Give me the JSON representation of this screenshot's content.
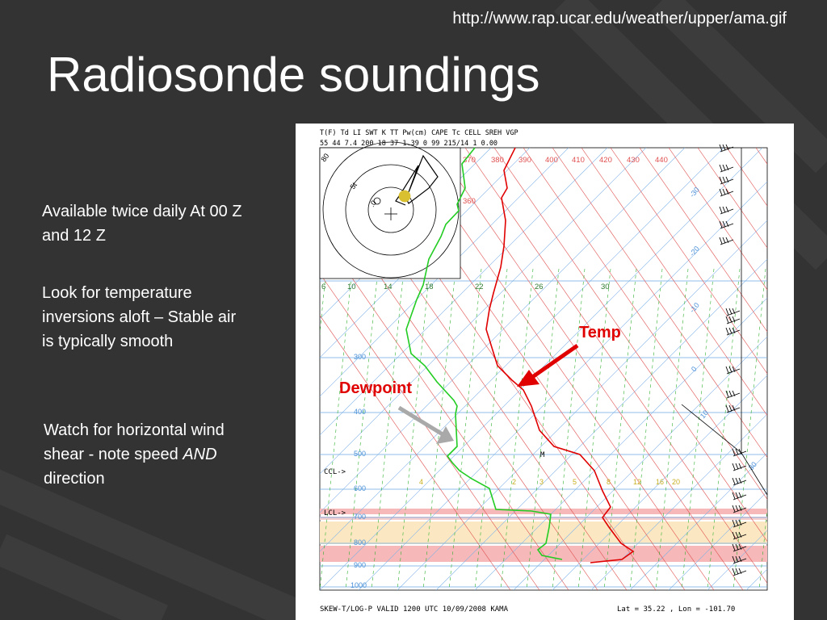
{
  "slide": {
    "url": "http://www.rap.ucar.edu/weather/upper/ama.gif",
    "title": "Radiosonde soundings",
    "bullets": {
      "b1": "Available twice daily At 00 Z and 12 Z",
      "b2": "Look for temperature inversions aloft – Stable air is typically smooth",
      "b3_pre": "Watch for horizontal wind shear  - note speed ",
      "b3_em": "AND",
      "b3_post": " direction"
    }
  },
  "sounding": {
    "header_labels": "T(F)  Td   LI  SWT   K  TT  Pw(cm)  CAPE   Tc   CELL  SREH   VGP",
    "header_values": " 55   44  7.4  200  18  37   1.39     0   99  215/14    1  0.00",
    "footer_left": "SKEW-T/LOG-P VALID 1200 UTC 10/09/2008   KAMA",
    "footer_right": "Lat =   35.22 , Lon =  -101.70",
    "pressure_labels": [
      "300",
      "400",
      "500",
      "600",
      "700",
      "800",
      "900",
      "1000"
    ],
    "theta_top_labels": [
      "370",
      "380",
      "390",
      "400",
      "410",
      "420",
      "430",
      "440"
    ],
    "theta_side_label": "360",
    "temp_row_labels": [
      "6",
      "10",
      "14",
      "18",
      "22",
      "26",
      "30"
    ],
    "skew_temp_labels": [
      "-30",
      "-20",
      "-10",
      "0",
      "10",
      "20",
      "30"
    ],
    "mixing_ratio_labels": [
      "4",
      "2",
      "3",
      "5",
      "8",
      "12",
      "16",
      "20"
    ],
    "ccl_label": "CCL->",
    "lcl_label": "LCL->",
    "m_label": "M",
    "hodo_labels": [
      "80",
      "5t",
      ".0"
    ],
    "temp_label": "Temp",
    "dewpoint_label": "Dewpoint",
    "colors": {
      "temp": "#e00000",
      "dewpoint": "#22cc22",
      "isobar": "#6aa8e0",
      "isotherm": "#7fb2e8",
      "dry_adiabat": "#e05050",
      "moist_adiabat": "#30b030"
    }
  }
}
